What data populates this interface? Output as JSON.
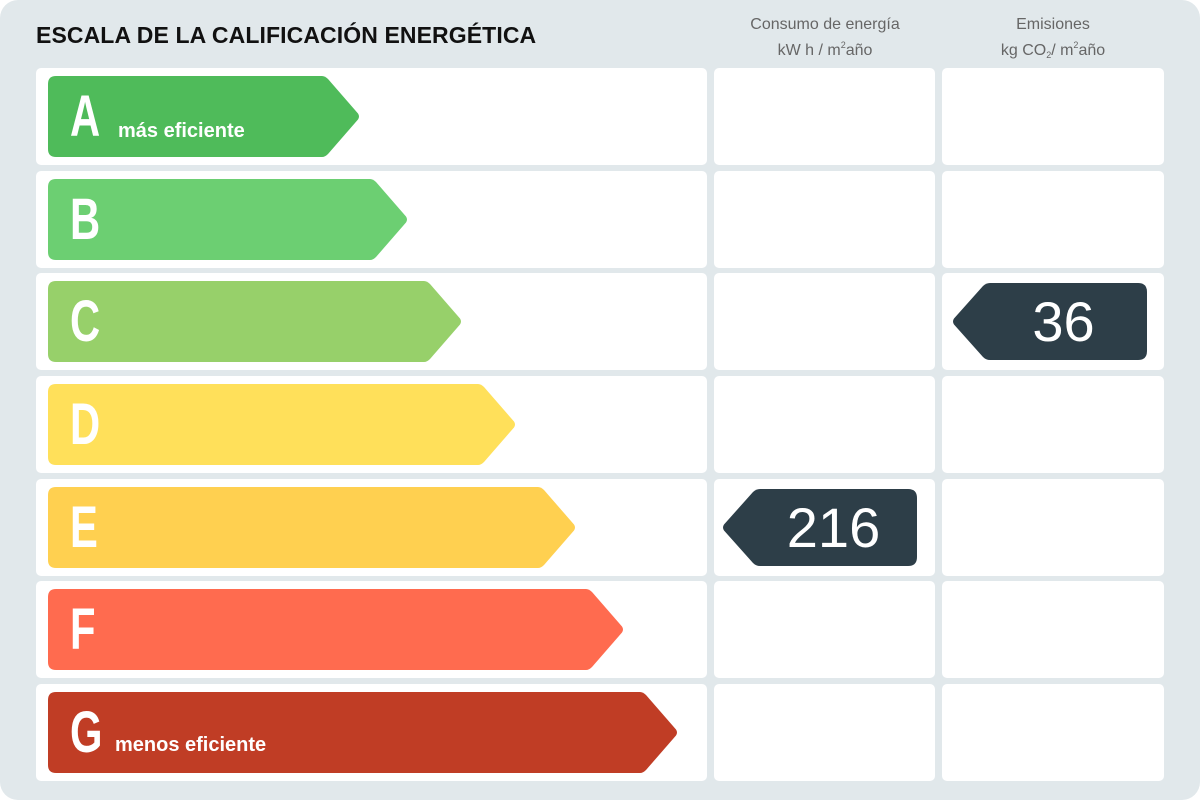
{
  "title": "ESCALA DE LA CALIFICACIÓN ENERGÉTICA",
  "columns": {
    "consumo": {
      "line1": "Consumo de energía",
      "line2_pre": "kW h / m",
      "line2_sup": "2",
      "line2_post": "año"
    },
    "emisiones": {
      "line1": "Emisiones",
      "line2_pre": "kg CO",
      "line2_sub": "2",
      "line2_mid": "/ m",
      "line2_sup": "2",
      "line2_post": "año"
    }
  },
  "ratings": [
    {
      "letter": "A",
      "sublabel": "más eficiente",
      "color": "#4fbb5a"
    },
    {
      "letter": "B",
      "sublabel": "",
      "color": "#6ccf72"
    },
    {
      "letter": "C",
      "sublabel": "",
      "color": "#97d06a"
    },
    {
      "letter": "D",
      "sublabel": "",
      "color": "#ffe05a"
    },
    {
      "letter": "E",
      "sublabel": "",
      "color": "#ffd050"
    },
    {
      "letter": "F",
      "sublabel": "",
      "color": "#ff6b4f"
    },
    {
      "letter": "G",
      "sublabel": "menos eficiente",
      "color": "#c03d25"
    }
  ],
  "indicators": {
    "consumo": {
      "value": "216",
      "rating": "E"
    },
    "emisiones": {
      "value": "36",
      "rating": "C"
    },
    "badge_color": "#2d3e48"
  },
  "chart_data": {
    "type": "table",
    "title": "ESCALA DE LA CALIFICACIÓN ENERGÉTICA",
    "categories": [
      "A",
      "B",
      "C",
      "D",
      "E",
      "F",
      "G"
    ],
    "category_notes": {
      "A": "más eficiente",
      "G": "menos eficiente"
    },
    "series": [
      {
        "name": "Consumo de energía (kW h / m²año)",
        "value": 216,
        "rating": "E"
      },
      {
        "name": "Emisiones (kg CO₂/ m²año)",
        "value": 36,
        "rating": "C"
      }
    ]
  }
}
